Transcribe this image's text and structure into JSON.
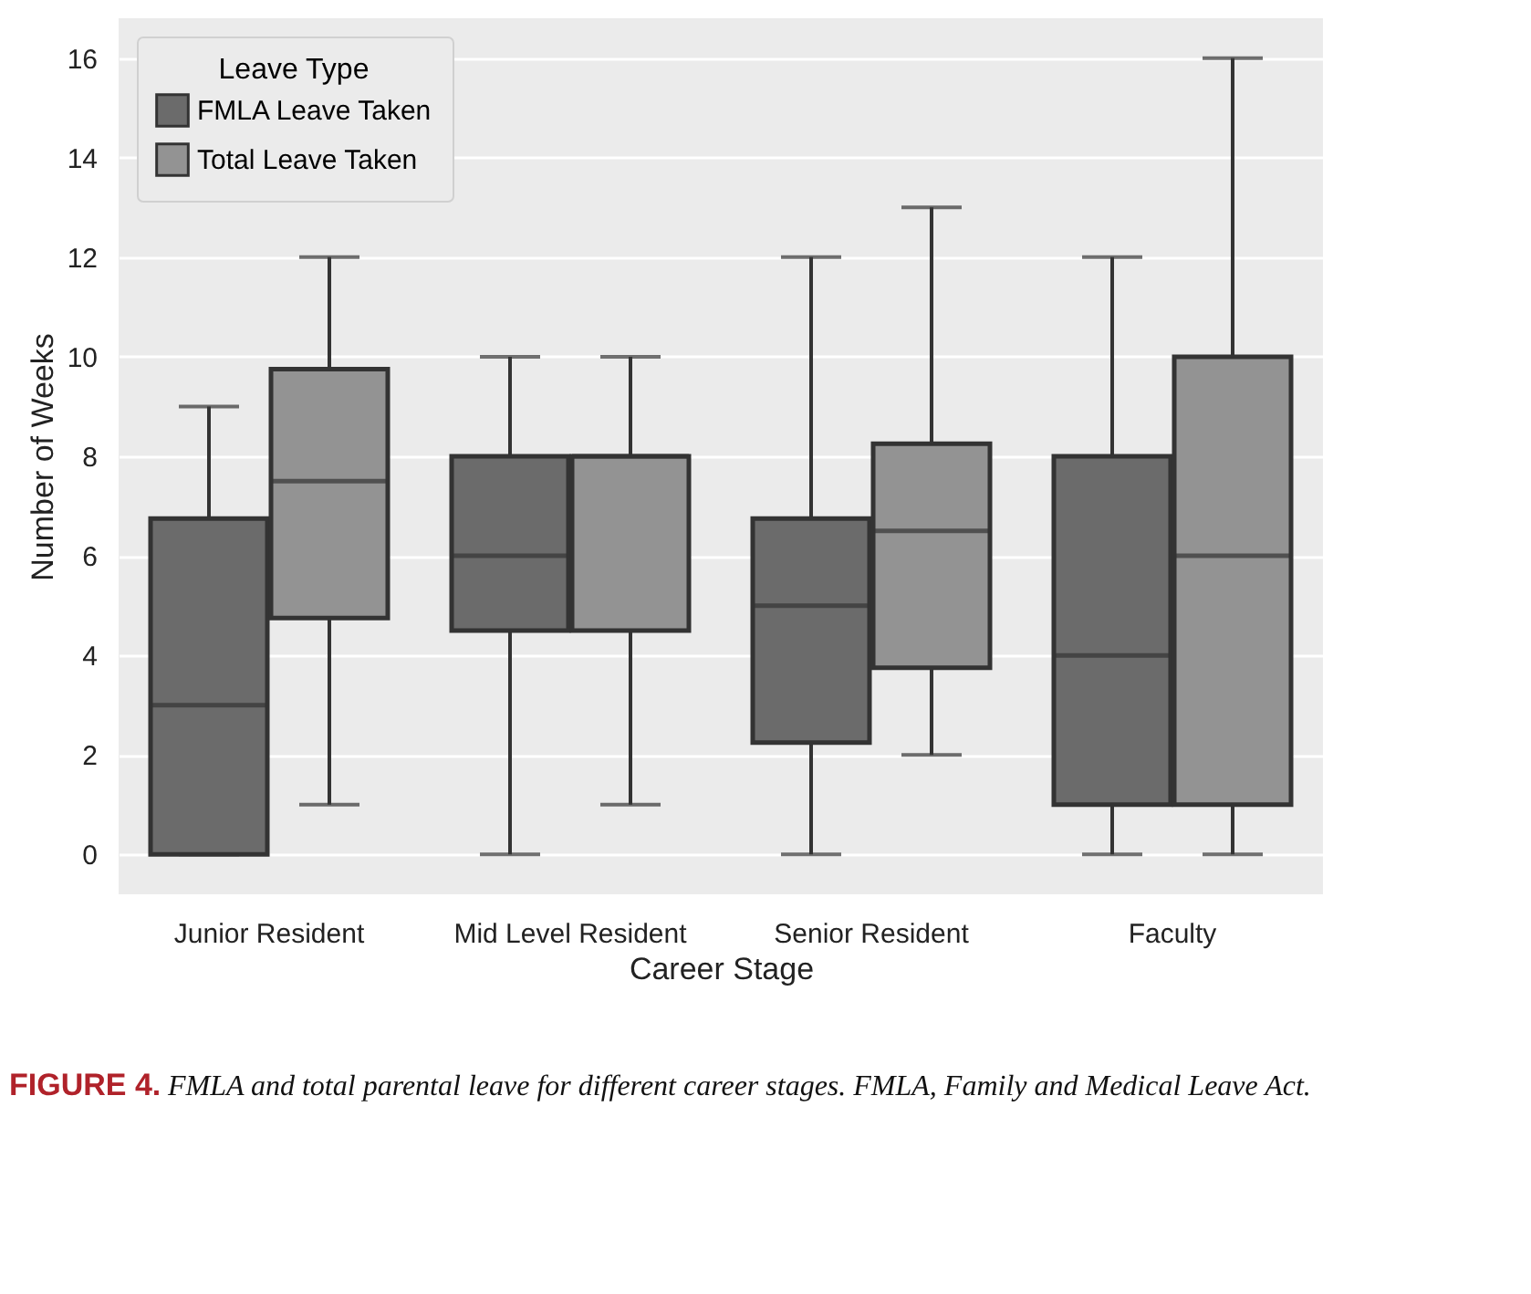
{
  "chart_data": {
    "type": "box",
    "xlabel": "Career Stage",
    "ylabel": "Number of Weeks",
    "legend_title": "Leave Type",
    "legend": "top left",
    "grid": "y",
    "categories": [
      "Junior Resident",
      "Mid Level Resident",
      "Senior Resident",
      "Faculty"
    ],
    "ylim": [
      -0.8,
      16.8
    ],
    "yticks": [
      0,
      2,
      4,
      6,
      8,
      10,
      12,
      14,
      16
    ],
    "series": [
      {
        "name": "FMLA Leave Taken",
        "color": "#6b6b6b",
        "boxes": [
          {
            "low": 0,
            "q1": 0,
            "median": 3,
            "q3": 6.75,
            "high": 9
          },
          {
            "low": 0,
            "q1": 4.5,
            "median": 6,
            "q3": 8,
            "high": 10
          },
          {
            "low": 0,
            "q1": 2.25,
            "median": 5,
            "q3": 6.75,
            "high": 12
          },
          {
            "low": 0,
            "q1": 1,
            "median": 4,
            "q3": 8,
            "high": 12
          }
        ]
      },
      {
        "name": "Total Leave Taken",
        "color": "#939393",
        "boxes": [
          {
            "low": 1,
            "q1": 4.75,
            "median": 7.5,
            "q3": 9.75,
            "high": 12
          },
          {
            "low": 1,
            "q1": 4.5,
            "median": 8,
            "q3": 8,
            "high": 10
          },
          {
            "low": 2,
            "q1": 3.75,
            "median": 6.5,
            "q3": 8.25,
            "high": 13
          },
          {
            "low": 0,
            "q1": 1,
            "median": 6,
            "q3": 10,
            "high": 16
          }
        ]
      }
    ],
    "annotations": [
      "FIGURE 4.",
      "FMLA and total parental leave for different career stages. FMLA, Family and Medical Leave Act."
    ]
  }
}
